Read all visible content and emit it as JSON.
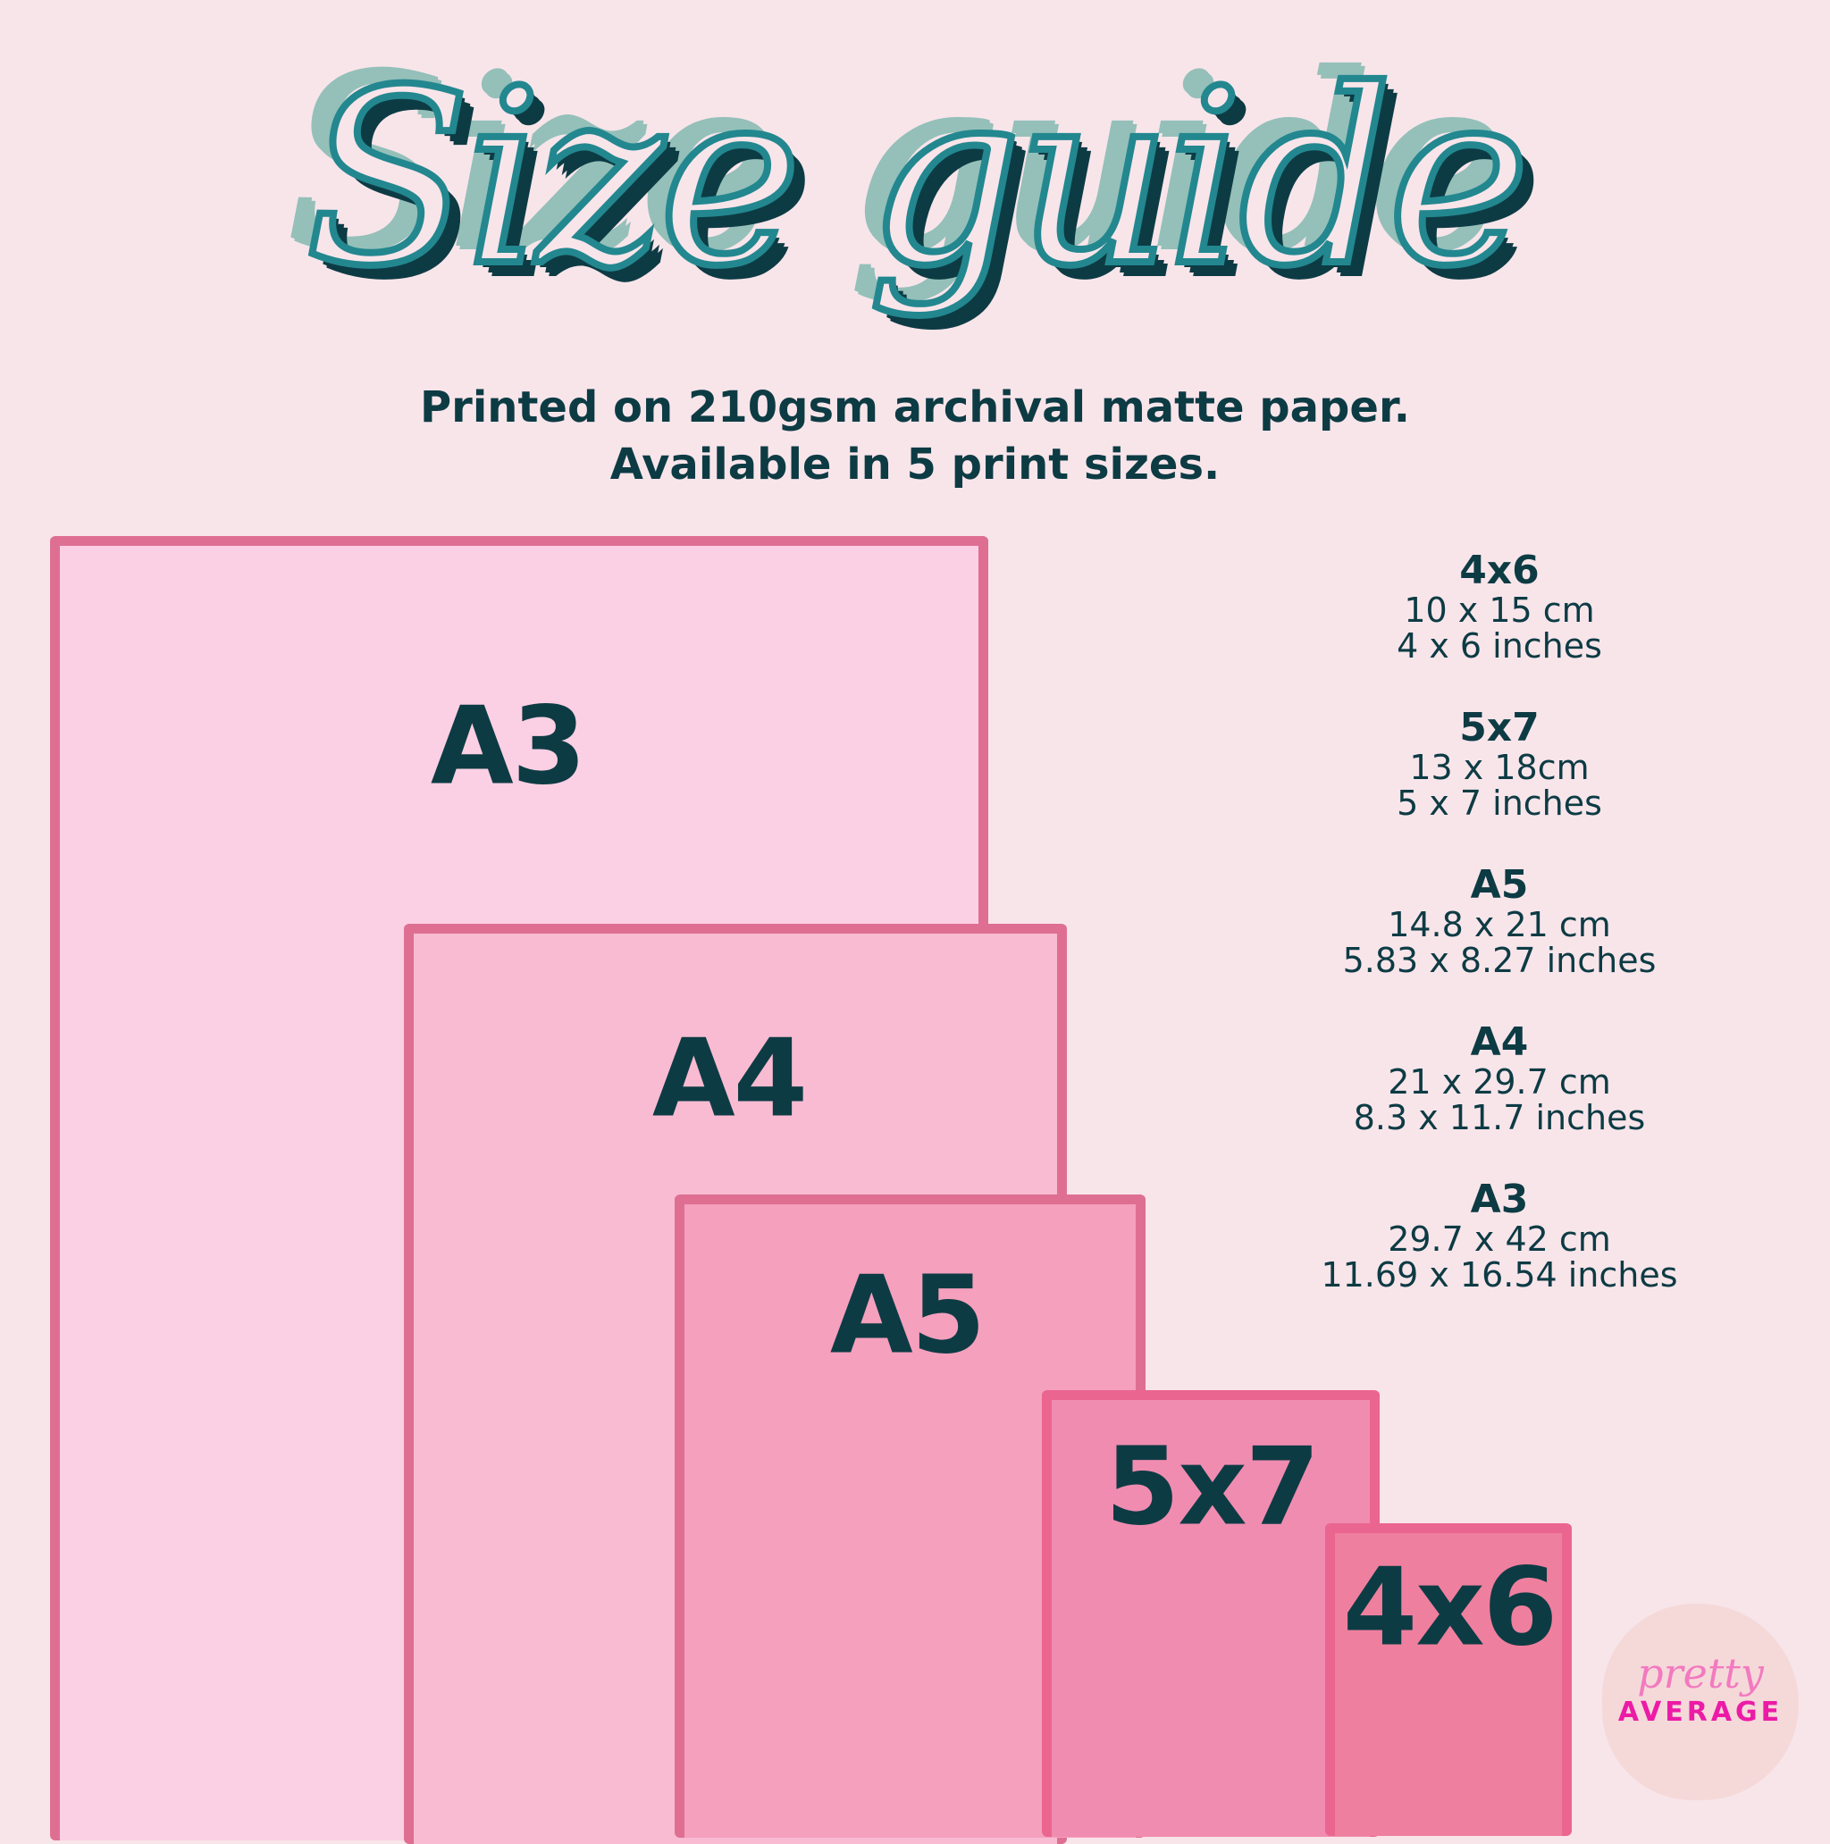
{
  "title": "Size guide",
  "subtitle": [
    "Printed on 210gsm archival matte paper.",
    "Available in 5 print sizes."
  ],
  "sizes": [
    {
      "name": "4x6",
      "cm": "10 x 15 cm",
      "inches": "4 x 6 inches"
    },
    {
      "name": "5x7",
      "cm": "13 x 18cm",
      "inches": "5 x 7 inches"
    },
    {
      "name": "A5",
      "cm": "14.8 x 21 cm",
      "inches": "5.83 x 8.27 inches"
    },
    {
      "name": "A4",
      "cm": "21 x 29.7 cm",
      "inches": "8.3 x 11.7 inches"
    },
    {
      "name": "A3",
      "cm": "29.7 x 42 cm",
      "inches": "11.69 x 16.54 inches"
    }
  ],
  "logo": {
    "script": "pretty",
    "word": "AVERAGE"
  },
  "colors": {
    "background": "#f8e5ea",
    "text": "#0d3b44",
    "a3": "#fbd0e4",
    "a4": "#f9bbd2",
    "a5": "#f5a0bd",
    "5x7": "#f08cb0",
    "4x6": "#ef7f9e",
    "outline": "#de6f93"
  }
}
